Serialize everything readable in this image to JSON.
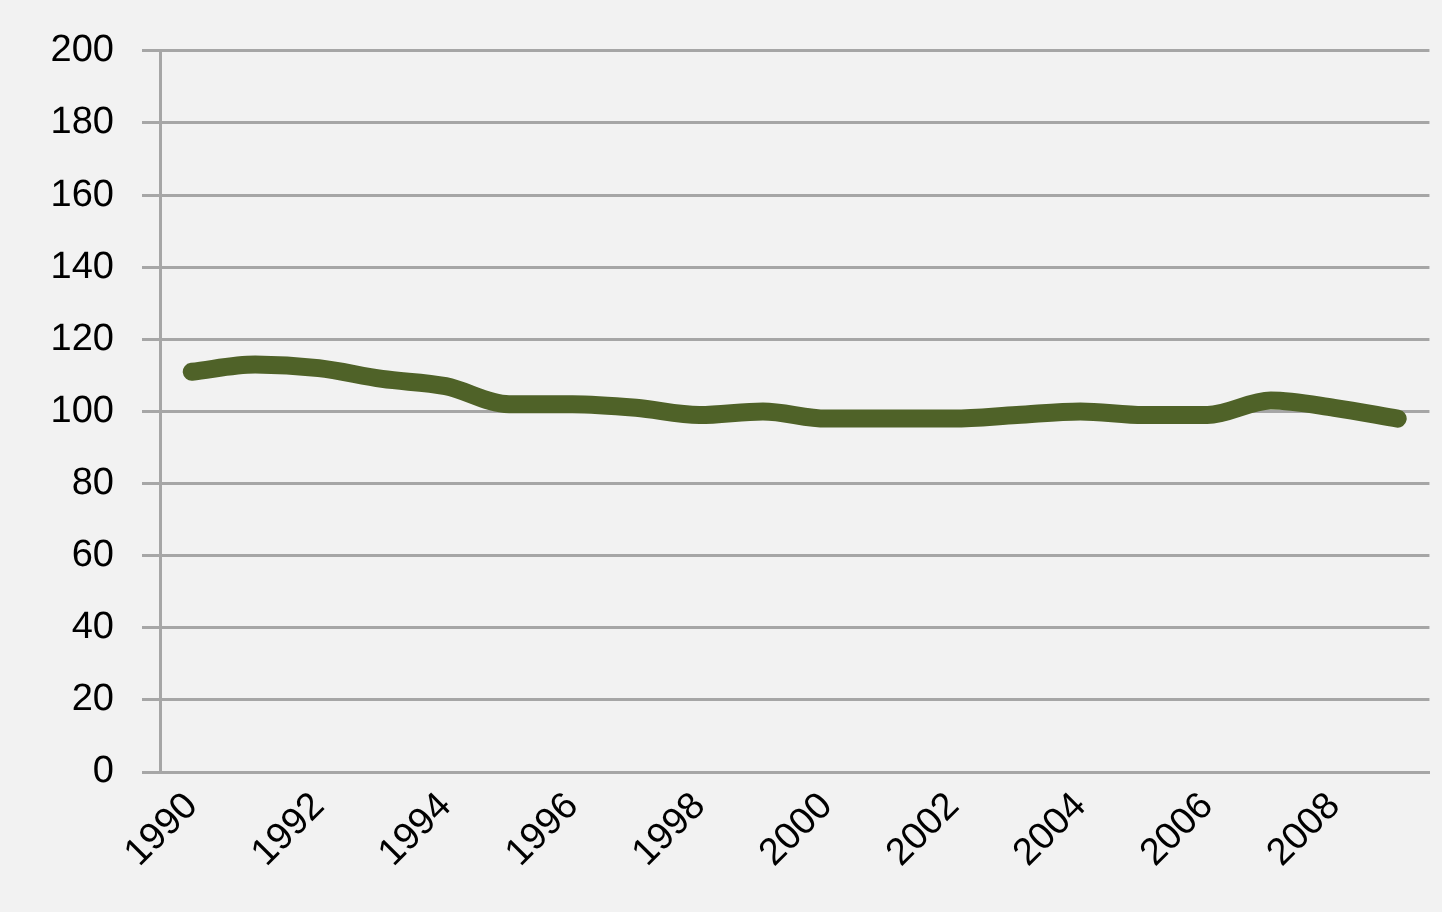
{
  "chart_data": {
    "type": "line",
    "categories": [
      "1990",
      null,
      "1992",
      null,
      "1994",
      null,
      "1996",
      null,
      "1998",
      null,
      "2000",
      null,
      "2002",
      null,
      "2004",
      null,
      "2006",
      null,
      "2008",
      null
    ],
    "series": [
      {
        "color": "#4f6228",
        "values": [
          111,
          113,
          112,
          109,
          107,
          102,
          102,
          101,
          99,
          100,
          98,
          98,
          98,
          99,
          100,
          99,
          99,
          103,
          101,
          98
        ]
      }
    ],
    "ylim": [
      0,
      200
    ],
    "yticks": [
      0,
      20,
      40,
      60,
      80,
      100,
      120,
      140,
      160,
      180,
      200
    ],
    "grid": "y",
    "marker": "none",
    "line_style": "solid"
  }
}
